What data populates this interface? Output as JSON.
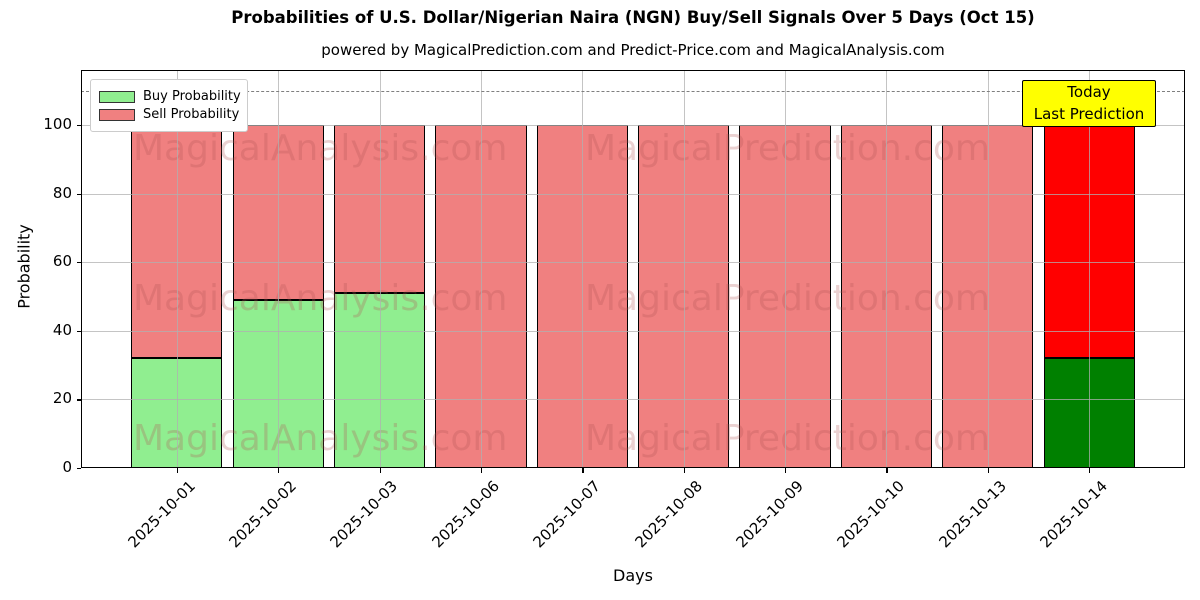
{
  "chart_data": {
    "type": "bar",
    "stacked": true,
    "title": "Probabilities of U.S. Dollar/Nigerian Naira (NGN) Buy/Sell Signals Over 5 Days (Oct 15)",
    "subtitle": "powered by MagicalPrediction.com and Predict-Price.com and MagicalAnalysis.com",
    "xlabel": "Days",
    "ylabel": "Probability",
    "categories": [
      "2025-10-01",
      "2025-10-02",
      "2025-10-03",
      "2025-10-06",
      "2025-10-07",
      "2025-10-08",
      "2025-10-09",
      "2025-10-10",
      "2025-10-13",
      "2025-10-14"
    ],
    "series": [
      {
        "name": "Buy Probability",
        "color": "#90EE90",
        "today_color": "#008000",
        "values": [
          32,
          49,
          51,
          0,
          0,
          0,
          0,
          0,
          0,
          32
        ]
      },
      {
        "name": "Sell Probability",
        "color": "#F08080",
        "today_color": "#FF0000",
        "values": [
          68,
          51,
          49,
          100,
          100,
          100,
          100,
          100,
          100,
          68
        ]
      }
    ],
    "today_index": 9,
    "yticks": [
      0,
      20,
      40,
      60,
      80,
      100
    ],
    "ylim": [
      0,
      116
    ],
    "grid": true,
    "legend_position": "upper-left",
    "dashed_line_y": 110,
    "annotation": {
      "lines": [
        "Today",
        "Last Prediction"
      ],
      "bg": "#FFFF00"
    },
    "watermarks": [
      "MagicalAnalysis.com",
      "MagicalPrediction.com"
    ]
  }
}
